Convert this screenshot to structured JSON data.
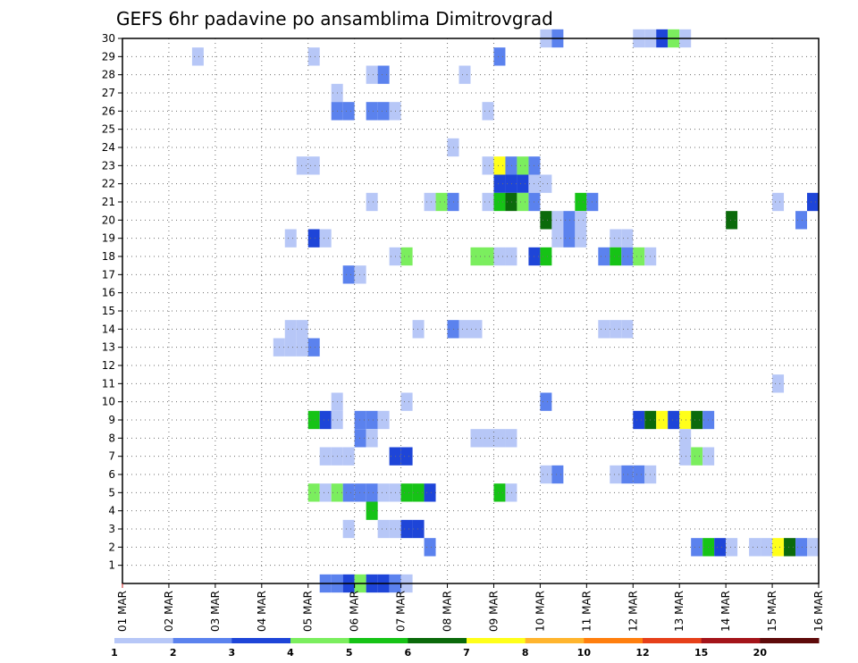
{
  "chart_data": {
    "type": "heatmap",
    "title": "GEFS 6hr padavine po ansamblima Dimitrovgrad",
    "x_tick_labels": [
      "01 MAR",
      "02 MAR",
      "03 MAR",
      "04 MAR",
      "05 MAR",
      "06 MAR",
      "07 MAR",
      "08 MAR",
      "09 MAR",
      "10 MAR",
      "11 MAR",
      "12 MAR",
      "13 MAR",
      "14 MAR",
      "15 MAR",
      "16 MAR"
    ],
    "y_tick_labels": [
      "1",
      "2",
      "3",
      "4",
      "5",
      "6",
      "7",
      "8",
      "9",
      "10",
      "11",
      "12",
      "13",
      "14",
      "15",
      "16",
      "17",
      "18",
      "19",
      "20",
      "21",
      "22",
      "23",
      "24",
      "25",
      "26",
      "27",
      "28",
      "29",
      "30"
    ],
    "xlim_days": [
      1,
      16
    ],
    "ylim_member": [
      0,
      30
    ],
    "grid": true,
    "colorbar": {
      "position": "bottom",
      "labels": [
        "1",
        "2",
        "3",
        "4",
        "5",
        "6",
        "7",
        "8",
        "10",
        "12",
        "15",
        "20"
      ],
      "colors": [
        "#b7c7f7",
        "#5b82ee",
        "#1e45d8",
        "#7bee5e",
        "#16c316",
        "#0b6a0b",
        "#ffff1a",
        "#ffb52e",
        "#ff7f0e",
        "#e6401a",
        "#a4141a",
        "#5e0a0a"
      ]
    },
    "cell_step_days": 0.25,
    "cells": [
      {
        "member": 30,
        "day": 10.0,
        "value": 1.5
      },
      {
        "member": 30,
        "day": 10.25,
        "value": 2.5
      },
      {
        "member": 30,
        "day": 12.0,
        "value": 1.5
      },
      {
        "member": 30,
        "day": 12.25,
        "value": 1.5
      },
      {
        "member": 30,
        "day": 12.5,
        "value": 3.5
      },
      {
        "member": 30,
        "day": 12.75,
        "value": 4.5
      },
      {
        "member": 30,
        "day": 13.0,
        "value": 1.5
      },
      {
        "member": 29,
        "day": 2.5,
        "value": 1.5
      },
      {
        "member": 29,
        "day": 5.0,
        "value": 1.5
      },
      {
        "member": 29,
        "day": 9.0,
        "value": 2.5
      },
      {
        "member": 28,
        "day": 6.25,
        "value": 1.5
      },
      {
        "member": 28,
        "day": 6.5,
        "value": 2.5
      },
      {
        "member": 28,
        "day": 8.25,
        "value": 1.5
      },
      {
        "member": 27,
        "day": 5.5,
        "value": 1.5
      },
      {
        "member": 26,
        "day": 5.5,
        "value": 2.5
      },
      {
        "member": 26,
        "day": 5.75,
        "value": 2.5
      },
      {
        "member": 26,
        "day": 6.25,
        "value": 2.5
      },
      {
        "member": 26,
        "day": 6.5,
        "value": 2.5
      },
      {
        "member": 26,
        "day": 6.75,
        "value": 1.5
      },
      {
        "member": 26,
        "day": 8.75,
        "value": 1.5
      },
      {
        "member": 24,
        "day": 8.0,
        "value": 1.5
      },
      {
        "member": 23,
        "day": 4.75,
        "value": 1.5
      },
      {
        "member": 23,
        "day": 5.0,
        "value": 1.5
      },
      {
        "member": 23,
        "day": 8.75,
        "value": 1.5
      },
      {
        "member": 23,
        "day": 9.0,
        "value": 7.5
      },
      {
        "member": 23,
        "day": 9.25,
        "value": 2.5
      },
      {
        "member": 23,
        "day": 9.5,
        "value": 4.5
      },
      {
        "member": 23,
        "day": 9.75,
        "value": 2.5
      },
      {
        "member": 22,
        "day": 9.0,
        "value": 3.5
      },
      {
        "member": 22,
        "day": 9.25,
        "value": 3.5
      },
      {
        "member": 22,
        "day": 9.5,
        "value": 3.5
      },
      {
        "member": 22,
        "day": 9.75,
        "value": 1.5
      },
      {
        "member": 22,
        "day": 10.0,
        "value": 1.5
      },
      {
        "member": 21,
        "day": 6.25,
        "value": 1.5
      },
      {
        "member": 21,
        "day": 7.5,
        "value": 1.5
      },
      {
        "member": 21,
        "day": 7.75,
        "value": 4.5
      },
      {
        "member": 21,
        "day": 8.0,
        "value": 2.5
      },
      {
        "member": 21,
        "day": 8.75,
        "value": 1.5
      },
      {
        "member": 21,
        "day": 9.0,
        "value": 5.5
      },
      {
        "member": 21,
        "day": 9.25,
        "value": 6.5
      },
      {
        "member": 21,
        "day": 9.5,
        "value": 4.5
      },
      {
        "member": 21,
        "day": 9.75,
        "value": 2.5
      },
      {
        "member": 21,
        "day": 10.75,
        "value": 5.5
      },
      {
        "member": 21,
        "day": 11.0,
        "value": 2.5
      },
      {
        "member": 21,
        "day": 15.0,
        "value": 1.5
      },
      {
        "member": 21,
        "day": 15.75,
        "value": 3.5
      },
      {
        "member": 20,
        "day": 10.0,
        "value": 6.5
      },
      {
        "member": 20,
        "day": 10.25,
        "value": 1.5
      },
      {
        "member": 20,
        "day": 10.5,
        "value": 2.5
      },
      {
        "member": 20,
        "day": 10.75,
        "value": 1.5
      },
      {
        "member": 20,
        "day": 14.0,
        "value": 6.5
      },
      {
        "member": 20,
        "day": 15.5,
        "value": 2.5
      },
      {
        "member": 19,
        "day": 4.5,
        "value": 1.5
      },
      {
        "member": 19,
        "day": 5.0,
        "value": 3.5
      },
      {
        "member": 19,
        "day": 5.25,
        "value": 1.5
      },
      {
        "member": 19,
        "day": 10.25,
        "value": 1.5
      },
      {
        "member": 19,
        "day": 10.5,
        "value": 2.5
      },
      {
        "member": 19,
        "day": 10.75,
        "value": 1.5
      },
      {
        "member": 19,
        "day": 11.5,
        "value": 1.5
      },
      {
        "member": 19,
        "day": 11.75,
        "value": 1.5
      },
      {
        "member": 18,
        "day": 6.75,
        "value": 1.5
      },
      {
        "member": 18,
        "day": 7.0,
        "value": 4.5
      },
      {
        "member": 18,
        "day": 8.5,
        "value": 4.5
      },
      {
        "member": 18,
        "day": 8.75,
        "value": 4.5
      },
      {
        "member": 18,
        "day": 9.0,
        "value": 1.5
      },
      {
        "member": 18,
        "day": 9.25,
        "value": 1.5
      },
      {
        "member": 18,
        "day": 9.75,
        "value": 3.5
      },
      {
        "member": 18,
        "day": 10.0,
        "value": 5.5
      },
      {
        "member": 18,
        "day": 11.25,
        "value": 2.5
      },
      {
        "member": 18,
        "day": 11.5,
        "value": 5.5
      },
      {
        "member": 18,
        "day": 11.75,
        "value": 2.5
      },
      {
        "member": 18,
        "day": 12.0,
        "value": 4.5
      },
      {
        "member": 18,
        "day": 12.25,
        "value": 1.5
      },
      {
        "member": 17,
        "day": 5.75,
        "value": 2.5
      },
      {
        "member": 17,
        "day": 6.0,
        "value": 1.5
      },
      {
        "member": 14,
        "day": 4.5,
        "value": 1.5
      },
      {
        "member": 14,
        "day": 4.75,
        "value": 1.5
      },
      {
        "member": 14,
        "day": 7.25,
        "value": 1.5
      },
      {
        "member": 14,
        "day": 8.0,
        "value": 2.5
      },
      {
        "member": 14,
        "day": 8.25,
        "value": 1.5
      },
      {
        "member": 14,
        "day": 8.5,
        "value": 1.5
      },
      {
        "member": 14,
        "day": 11.25,
        "value": 1.5
      },
      {
        "member": 14,
        "day": 11.5,
        "value": 1.5
      },
      {
        "member": 14,
        "day": 11.75,
        "value": 1.5
      },
      {
        "member": 13,
        "day": 4.25,
        "value": 1.5
      },
      {
        "member": 13,
        "day": 4.5,
        "value": 1.5
      },
      {
        "member": 13,
        "day": 4.75,
        "value": 1.5
      },
      {
        "member": 13,
        "day": 5.0,
        "value": 2.5
      },
      {
        "member": 11,
        "day": 15.0,
        "value": 1.5
      },
      {
        "member": 10,
        "day": 5.5,
        "value": 1.5
      },
      {
        "member": 10,
        "day": 7.0,
        "value": 1.5
      },
      {
        "member": 10,
        "day": 10.0,
        "value": 2.5
      },
      {
        "member": 9,
        "day": 5.0,
        "value": 5.5
      },
      {
        "member": 9,
        "day": 5.25,
        "value": 3.5
      },
      {
        "member": 9,
        "day": 5.5,
        "value": 1.5
      },
      {
        "member": 9,
        "day": 6.0,
        "value": 2.5
      },
      {
        "member": 9,
        "day": 6.25,
        "value": 2.5
      },
      {
        "member": 9,
        "day": 6.5,
        "value": 1.5
      },
      {
        "member": 9,
        "day": 12.0,
        "value": 3.5
      },
      {
        "member": 9,
        "day": 12.25,
        "value": 6.5
      },
      {
        "member": 9,
        "day": 12.5,
        "value": 7.5
      },
      {
        "member": 9,
        "day": 12.75,
        "value": 3.5
      },
      {
        "member": 9,
        "day": 13.0,
        "value": 7.5
      },
      {
        "member": 9,
        "day": 13.25,
        "value": 6.5
      },
      {
        "member": 9,
        "day": 13.5,
        "value": 2.5
      },
      {
        "member": 8,
        "day": 6.0,
        "value": 2.5
      },
      {
        "member": 8,
        "day": 6.25,
        "value": 1.5
      },
      {
        "member": 8,
        "day": 8.5,
        "value": 1.5
      },
      {
        "member": 8,
        "day": 8.75,
        "value": 1.5
      },
      {
        "member": 8,
        "day": 9.0,
        "value": 1.5
      },
      {
        "member": 8,
        "day": 9.25,
        "value": 1.5
      },
      {
        "member": 8,
        "day": 13.0,
        "value": 1.5
      },
      {
        "member": 7,
        "day": 5.25,
        "value": 1.5
      },
      {
        "member": 7,
        "day": 5.5,
        "value": 1.5
      },
      {
        "member": 7,
        "day": 5.75,
        "value": 1.5
      },
      {
        "member": 7,
        "day": 6.75,
        "value": 3.5
      },
      {
        "member": 7,
        "day": 7.0,
        "value": 3.5
      },
      {
        "member": 7,
        "day": 13.0,
        "value": 1.5
      },
      {
        "member": 7,
        "day": 13.25,
        "value": 4.5
      },
      {
        "member": 7,
        "day": 13.5,
        "value": 1.5
      },
      {
        "member": 6,
        "day": 10.0,
        "value": 1.5
      },
      {
        "member": 6,
        "day": 10.25,
        "value": 2.5
      },
      {
        "member": 6,
        "day": 11.5,
        "value": 1.5
      },
      {
        "member": 6,
        "day": 11.75,
        "value": 2.5
      },
      {
        "member": 6,
        "day": 12.0,
        "value": 2.5
      },
      {
        "member": 6,
        "day": 12.25,
        "value": 1.5
      },
      {
        "member": 5,
        "day": 5.0,
        "value": 4.5
      },
      {
        "member": 5,
        "day": 5.25,
        "value": 1.5
      },
      {
        "member": 5,
        "day": 5.5,
        "value": 4.5
      },
      {
        "member": 5,
        "day": 5.75,
        "value": 2.5
      },
      {
        "member": 5,
        "day": 6.0,
        "value": 2.5
      },
      {
        "member": 5,
        "day": 6.25,
        "value": 2.5
      },
      {
        "member": 5,
        "day": 6.5,
        "value": 1.5
      },
      {
        "member": 5,
        "day": 6.75,
        "value": 1.5
      },
      {
        "member": 5,
        "day": 7.0,
        "value": 5.5
      },
      {
        "member": 5,
        "day": 7.25,
        "value": 5.5
      },
      {
        "member": 5,
        "day": 7.5,
        "value": 3.5
      },
      {
        "member": 5,
        "day": 9.0,
        "value": 5.5
      },
      {
        "member": 5,
        "day": 9.25,
        "value": 1.5
      },
      {
        "member": 4,
        "day": 6.25,
        "value": 5.5
      },
      {
        "member": 3,
        "day": 5.75,
        "value": 1.5
      },
      {
        "member": 3,
        "day": 6.5,
        "value": 1.5
      },
      {
        "member": 3,
        "day": 6.75,
        "value": 1.5
      },
      {
        "member": 3,
        "day": 7.0,
        "value": 3.5
      },
      {
        "member": 3,
        "day": 7.25,
        "value": 3.5
      },
      {
        "member": 2,
        "day": 7.5,
        "value": 2.5
      },
      {
        "member": 2,
        "day": 13.25,
        "value": 2.5
      },
      {
        "member": 2,
        "day": 13.5,
        "value": 5.5
      },
      {
        "member": 2,
        "day": 13.75,
        "value": 3.5
      },
      {
        "member": 2,
        "day": 14.0,
        "value": 1.5
      },
      {
        "member": 2,
        "day": 14.5,
        "value": 1.5
      },
      {
        "member": 2,
        "day": 14.75,
        "value": 1.5
      },
      {
        "member": 2,
        "day": 15.0,
        "value": 7.5
      },
      {
        "member": 2,
        "day": 15.25,
        "value": 6.5
      },
      {
        "member": 2,
        "day": 15.5,
        "value": 2.5
      },
      {
        "member": 2,
        "day": 15.75,
        "value": 1.5
      },
      {
        "member": 0,
        "day": 5.25,
        "value": 2.5
      },
      {
        "member": 0,
        "day": 5.5,
        "value": 2.5
      },
      {
        "member": 0,
        "day": 5.75,
        "value": 3.5
      },
      {
        "member": 0,
        "day": 6.0,
        "value": 4.5
      },
      {
        "member": 0,
        "day": 6.25,
        "value": 3.5
      },
      {
        "member": 0,
        "day": 6.5,
        "value": 3.5
      },
      {
        "member": 0,
        "day": 6.75,
        "value": 2.5
      },
      {
        "member": 0,
        "day": 7.0,
        "value": 1.5
      }
    ]
  }
}
